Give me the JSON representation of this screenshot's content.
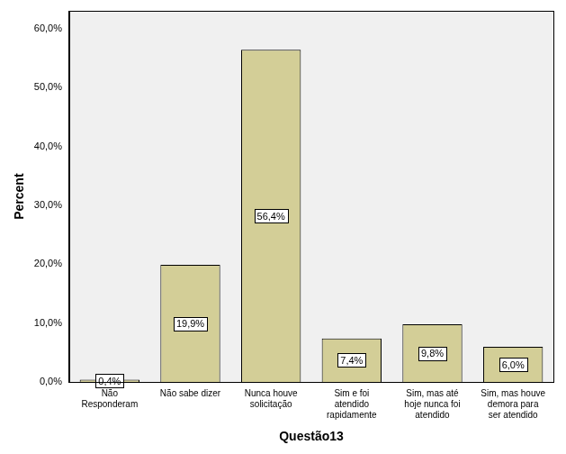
{
  "chart_data": {
    "type": "bar",
    "x_label": "Questão13",
    "y_label": "Percent",
    "categories": [
      "Não Responderam",
      "Não sabe dizer",
      "Nunca houve solicitação",
      "Sim e foi atendido rapidamente",
      "Sim, mas até hoje nunca foi atendido",
      "Sim, mas houve demora para ser atendido"
    ],
    "values": [
      0.4,
      19.9,
      56.4,
      7.4,
      9.8,
      6.0
    ],
    "value_labels": [
      "0,4%",
      "19,9%",
      "56,4%",
      "7,4%",
      "9,8%",
      "6,0%"
    ],
    "data_labels": true,
    "color": "#d3ce97",
    "ylim": [
      0,
      63
    ],
    "yticks": [
      {
        "value": 0,
        "label": "0,0%"
      },
      {
        "value": 10,
        "label": "10,0%"
      },
      {
        "value": 20,
        "label": "20,0%"
      },
      {
        "value": 30,
        "label": "30,0%"
      },
      {
        "value": 40,
        "label": "40,0%"
      },
      {
        "value": 50,
        "label": "50,0%"
      },
      {
        "value": 60,
        "label": "60,0%"
      }
    ],
    "grid": false,
    "legend": null
  }
}
